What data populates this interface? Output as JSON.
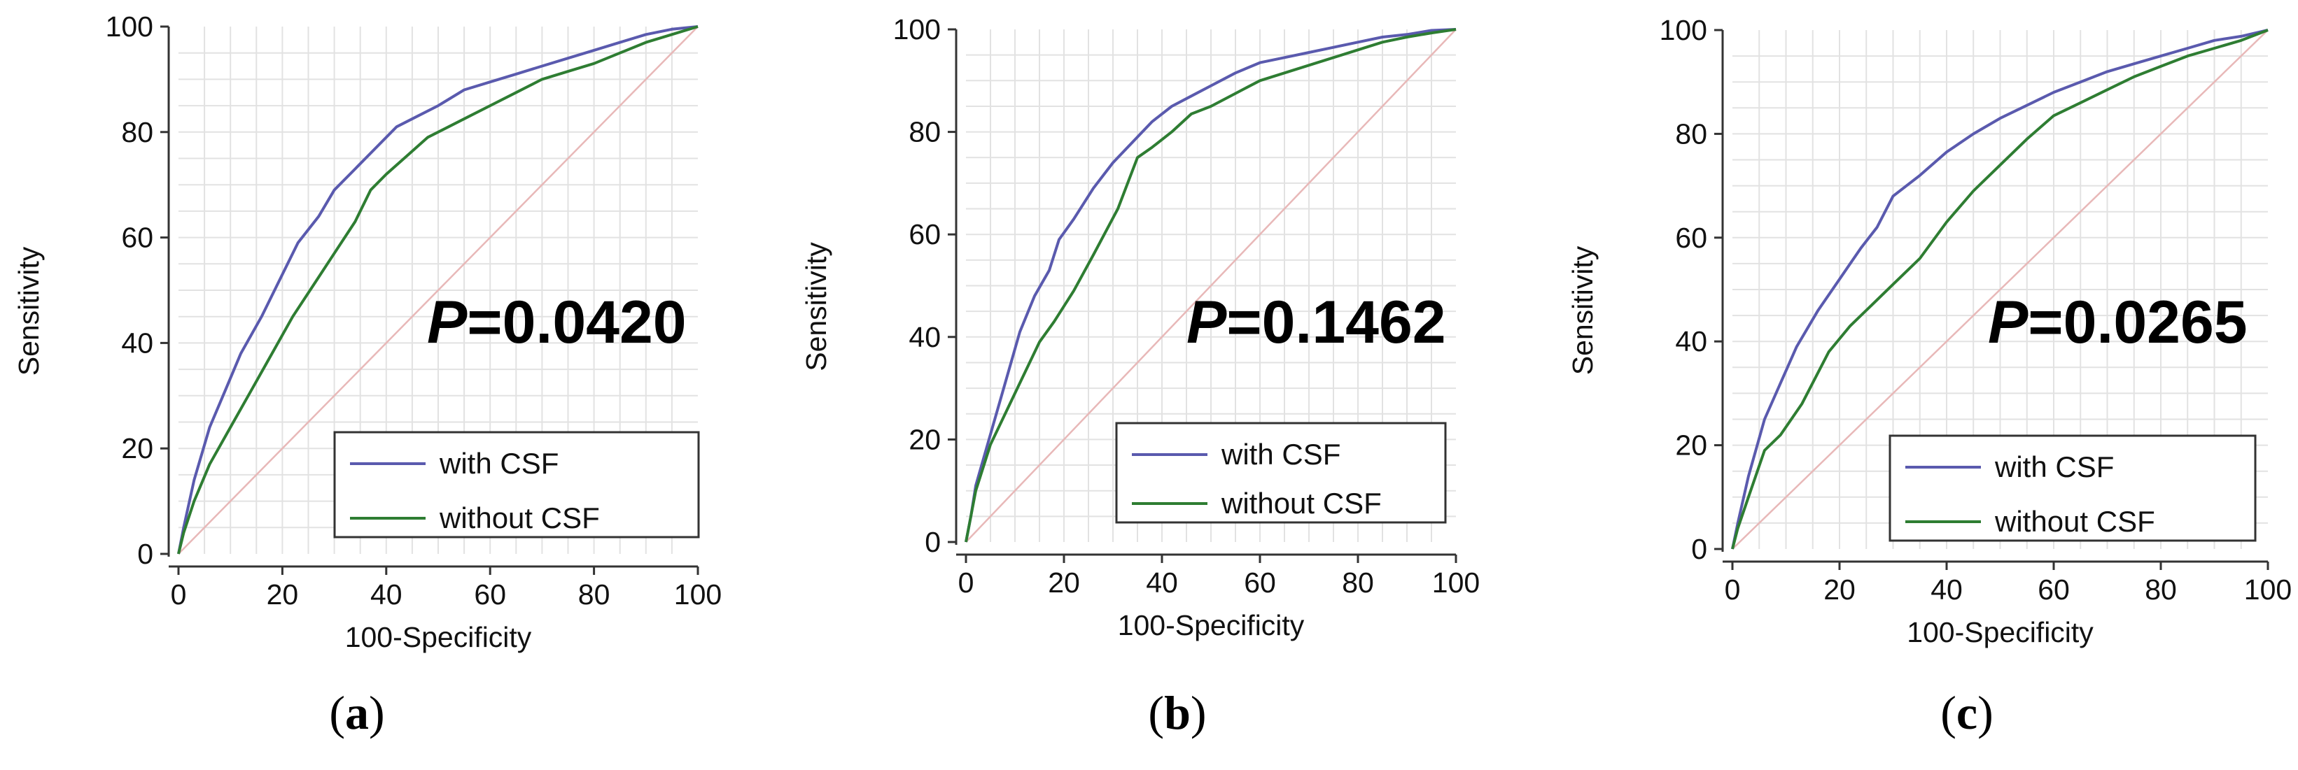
{
  "chart_data": [
    {
      "type": "line",
      "panel_label": "a",
      "annotation": {
        "italic": "P",
        "text": "=0.0420"
      },
      "xlabel": "100-Specificity",
      "ylabel": "Sensitivity",
      "xlim": [
        0,
        100
      ],
      "ylim": [
        0,
        100
      ],
      "xticks": [
        0,
        20,
        40,
        60,
        80,
        100
      ],
      "yticks": [
        0,
        20,
        40,
        60,
        80,
        100
      ],
      "grid": true,
      "legend_position": "bottom-right",
      "reference_line": {
        "x": [
          0,
          100
        ],
        "y": [
          0,
          100
        ],
        "color": "#e8b8b8"
      },
      "series": [
        {
          "name": "with CSF",
          "color": "#5a5aae",
          "x": [
            0,
            1,
            3,
            6,
            9,
            12,
            16,
            20,
            23,
            27,
            30,
            34,
            38,
            42,
            46,
            50,
            55,
            60,
            65,
            70,
            75,
            80,
            85,
            90,
            95,
            100
          ],
          "y": [
            0,
            5,
            14,
            24,
            31,
            38,
            45,
            53,
            59,
            64,
            69,
            73,
            77,
            81,
            83,
            85,
            88,
            89.5,
            91,
            92.5,
            94,
            95.5,
            97,
            98.5,
            99.5,
            100
          ]
        },
        {
          "name": "without CSF",
          "color": "#2e7d32",
          "x": [
            0,
            1,
            3,
            6,
            10,
            14,
            18,
            22,
            26,
            30,
            34,
            37,
            40,
            44,
            48,
            52,
            56,
            60,
            65,
            70,
            75,
            80,
            85,
            90,
            95,
            100
          ],
          "y": [
            0,
            4,
            10,
            17,
            24,
            31,
            38,
            45,
            51,
            57,
            63,
            69,
            72,
            75.5,
            79,
            81,
            83,
            85,
            87.5,
            90,
            91.5,
            93,
            95,
            97,
            98.5,
            100
          ]
        }
      ]
    },
    {
      "type": "line",
      "panel_label": "b",
      "annotation": {
        "italic": "P",
        "text": "=0.1462"
      },
      "xlabel": "100-Specificity",
      "ylabel": "Sensitivity",
      "xlim": [
        0,
        100
      ],
      "ylim": [
        0,
        100
      ],
      "xticks": [
        0,
        20,
        40,
        60,
        80,
        100
      ],
      "yticks": [
        0,
        20,
        40,
        60,
        80,
        100
      ],
      "grid": true,
      "legend_position": "bottom-right",
      "reference_line": {
        "x": [
          0,
          100
        ],
        "y": [
          0,
          100
        ],
        "color": "#e8b8b8"
      },
      "series": [
        {
          "name": "with CSF",
          "color": "#5a5aae",
          "x": [
            0,
            1,
            2,
            5,
            8,
            11,
            14,
            17,
            19,
            22,
            26,
            30,
            34,
            38,
            42,
            46,
            50,
            55,
            60,
            65,
            70,
            75,
            80,
            85,
            90,
            95,
            100
          ],
          "y": [
            0,
            5,
            11,
            21,
            31,
            41,
            48,
            53,
            59,
            63,
            69,
            74,
            78,
            82,
            85,
            87,
            89,
            91.5,
            93.5,
            94.5,
            95.5,
            96.5,
            97.5,
            98.5,
            99,
            99.8,
            100
          ]
        },
        {
          "name": "without CSF",
          "color": "#2e7d32",
          "x": [
            0,
            1,
            2,
            5,
            10,
            15,
            18,
            22,
            26,
            31,
            35,
            38,
            42,
            46,
            50,
            55,
            60,
            65,
            70,
            75,
            80,
            85,
            90,
            95,
            100
          ],
          "y": [
            0,
            5,
            10,
            19,
            29,
            39,
            43,
            49,
            56,
            65,
            75,
            77,
            80,
            83.5,
            85,
            87.5,
            90,
            91.5,
            93,
            94.5,
            96,
            97.5,
            98.5,
            99.3,
            100
          ]
        }
      ]
    },
    {
      "type": "line",
      "panel_label": "c",
      "annotation": {
        "italic": "P",
        "text": "=0.0265"
      },
      "xlabel": "100-Specificity",
      "ylabel": "Sensitivity",
      "xlim": [
        0,
        100
      ],
      "ylim": [
        0,
        100
      ],
      "xticks": [
        0,
        20,
        40,
        60,
        80,
        100
      ],
      "yticks": [
        0,
        20,
        40,
        60,
        80,
        100
      ],
      "grid": true,
      "legend_position": "bottom-right",
      "reference_line": {
        "x": [
          0,
          100
        ],
        "y": [
          0,
          100
        ],
        "color": "#e8b8b8"
      },
      "series": [
        {
          "name": "with CSF",
          "color": "#5a5aae",
          "x": [
            0,
            1,
            3,
            6,
            9,
            12,
            16,
            20,
            24,
            27,
            30,
            35,
            40,
            45,
            50,
            55,
            60,
            65,
            70,
            75,
            80,
            85,
            90,
            95,
            100
          ],
          "y": [
            0,
            5,
            14,
            25,
            32,
            39,
            46,
            52,
            58,
            62,
            68,
            72,
            76.5,
            80,
            83,
            85.5,
            88,
            90,
            92,
            93.5,
            95,
            96.5,
            98,
            98.8,
            100
          ]
        },
        {
          "name": "without CSF",
          "color": "#2e7d32",
          "x": [
            0,
            1,
            3,
            6,
            9,
            13,
            18,
            22,
            26,
            30,
            35,
            40,
            45,
            50,
            55,
            60,
            65,
            70,
            75,
            80,
            85,
            90,
            95,
            100
          ],
          "y": [
            0,
            4,
            10,
            19,
            22,
            28,
            38,
            43,
            47,
            51,
            56,
            63,
            69,
            74,
            79,
            83.5,
            86,
            88.5,
            91,
            93,
            95,
            96.5,
            98,
            100
          ]
        }
      ]
    }
  ]
}
